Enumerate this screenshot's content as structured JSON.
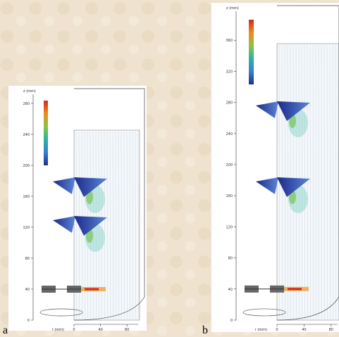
{
  "panels": [
    {
      "label": "a",
      "y_axis_label": "z (mm)",
      "x_axis_label": "r (mm)",
      "yticks": [
        0,
        40,
        80,
        120,
        160,
        200,
        240,
        280
      ],
      "xticks": [
        0,
        40,
        80
      ]
    },
    {
      "label": "b",
      "y_axis_label": "z (mm)",
      "x_axis_label": "r (mm)",
      "yticks": [
        0,
        40,
        80,
        120,
        160,
        200,
        240,
        280,
        320,
        360
      ],
      "xticks": [
        0,
        40,
        80
      ]
    }
  ]
}
